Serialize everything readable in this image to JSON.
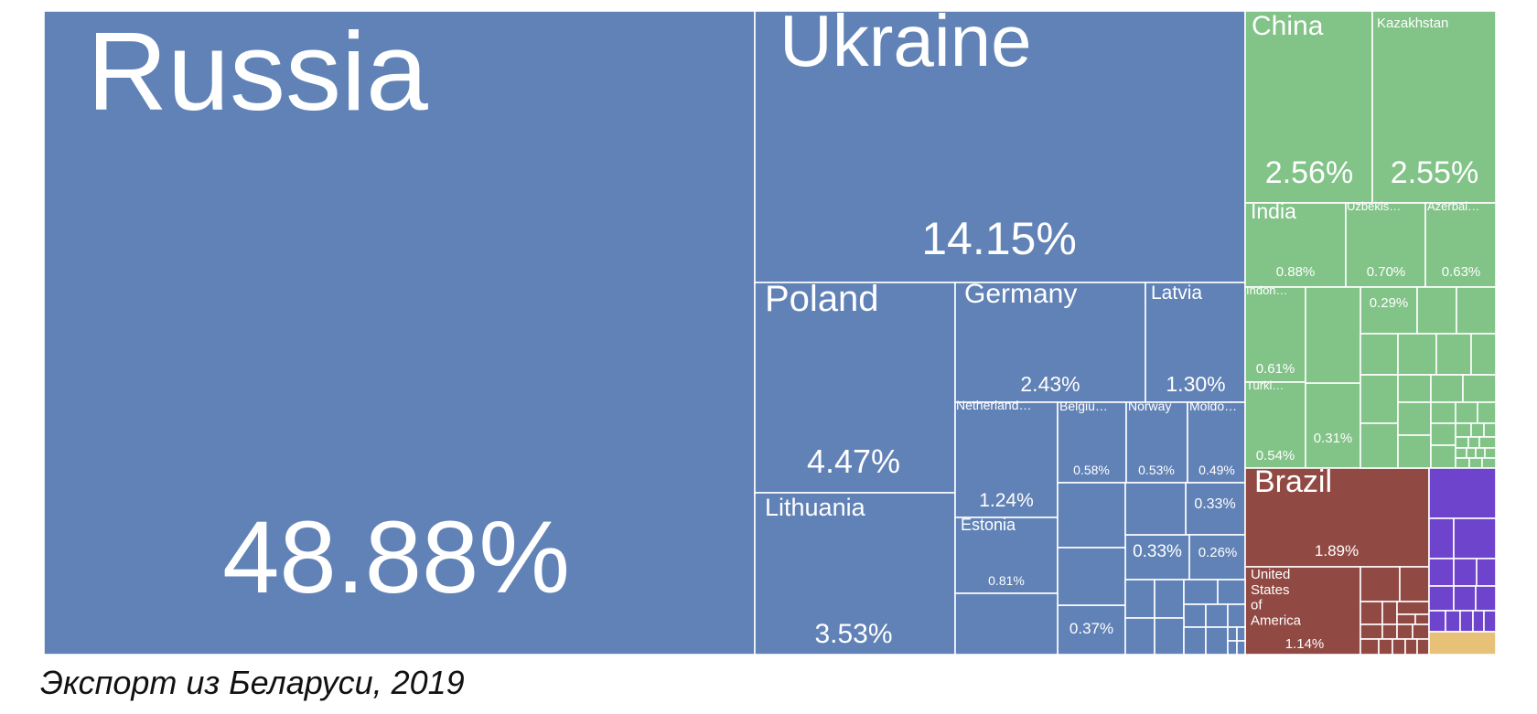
{
  "caption": "Экспорт из Беларуси, 2019",
  "colors": {
    "europe": "#6182b6",
    "asia": "#82c388",
    "americas": "#914a43",
    "africa": "#6f44cd",
    "oceania": "#e6c177",
    "border": "#ffffff"
  },
  "chart_data": {
    "type": "treemap",
    "title": "Экспорт из Беларуси, 2019",
    "labeled": [
      {
        "name": "Russia",
        "value": "48.88%",
        "region": "europe"
      },
      {
        "name": "Ukraine",
        "value": "14.15%",
        "region": "europe"
      },
      {
        "name": "Poland",
        "value": "4.47%",
        "region": "europe"
      },
      {
        "name": "Lithuania",
        "value": "3.53%",
        "region": "europe"
      },
      {
        "name": "Germany",
        "value": "2.43%",
        "region": "europe"
      },
      {
        "name": "Latvia",
        "value": "1.30%",
        "region": "europe"
      },
      {
        "name": "Netherland…",
        "value": "1.24%",
        "region": "europe"
      },
      {
        "name": "Estonia",
        "value": "0.81%",
        "region": "europe"
      },
      {
        "name": "Belgiu…",
        "value": "0.58%",
        "region": "europe"
      },
      {
        "name": "Norway",
        "value": "0.53%",
        "region": "europe"
      },
      {
        "name": "Moldo…",
        "value": "0.49%",
        "region": "europe"
      },
      {
        "name": "",
        "value": "0.33%",
        "region": "europe"
      },
      {
        "name": "",
        "value": "0.33%",
        "region": "europe"
      },
      {
        "name": "",
        "value": "0.26%",
        "region": "europe"
      },
      {
        "name": "",
        "value": "0.37%",
        "region": "europe"
      },
      {
        "name": "China",
        "value": "2.56%",
        "region": "asia"
      },
      {
        "name": "Kazakhstan",
        "value": "2.55%",
        "region": "asia"
      },
      {
        "name": "India",
        "value": "0.88%",
        "region": "asia"
      },
      {
        "name": "Uzbekis…",
        "value": "0.70%",
        "region": "asia"
      },
      {
        "name": "Azerbai…",
        "value": "0.63%",
        "region": "asia"
      },
      {
        "name": "Indon…",
        "value": "0.61%",
        "region": "asia"
      },
      {
        "name": "Turki…",
        "value": "0.54%",
        "region": "asia"
      },
      {
        "name": "",
        "value": "0.31%",
        "region": "asia"
      },
      {
        "name": "",
        "value": "0.29%",
        "region": "asia"
      },
      {
        "name": "Brazil",
        "value": "1.89%",
        "region": "americas"
      },
      {
        "name": "United States of America",
        "value": "1.14%",
        "region": "americas"
      }
    ]
  }
}
